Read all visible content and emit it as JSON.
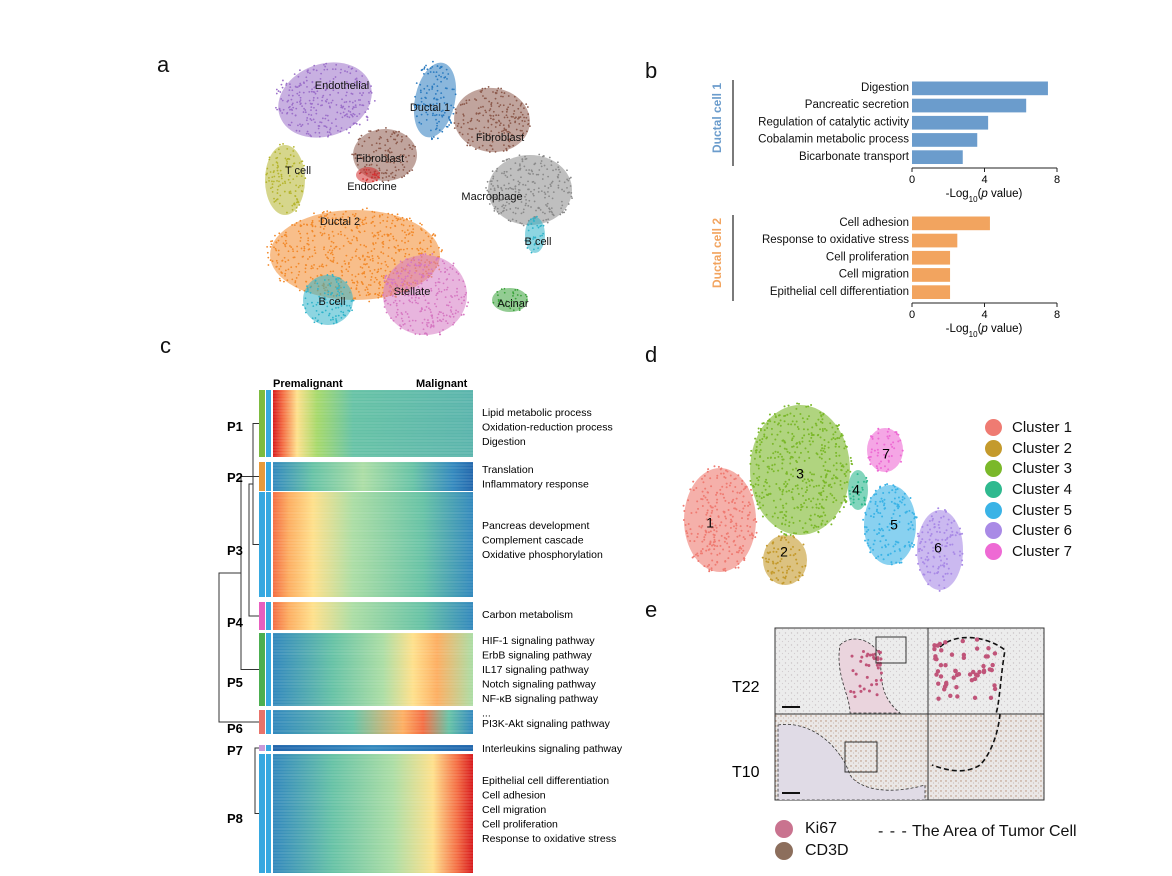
{
  "panel_labels": {
    "a": "a",
    "b": "b",
    "c": "c",
    "d": "d",
    "e": "e"
  },
  "panel_a": {
    "cell_types": [
      {
        "label": "Endothelial",
        "color": "#9b6fc9"
      },
      {
        "label": "Ductal 1",
        "color": "#2b7bbf"
      },
      {
        "label": "Fibroblast",
        "color": "#8c5a4c"
      },
      {
        "label": "T cell",
        "color": "#b5b52e"
      },
      {
        "label": "Fibroblast",
        "color": "#8c5a4c"
      },
      {
        "label": "Endocrine",
        "color": "#d22f2f"
      },
      {
        "label": "Macrophage",
        "color": "#8a8a8a"
      },
      {
        "label": "Ductal 2",
        "color": "#f2892a"
      },
      {
        "label": "B cell",
        "color": "#2fb3c9"
      },
      {
        "label": "B cell",
        "color": "#2fb3c9"
      },
      {
        "label": "Stellate",
        "color": "#d678c2"
      },
      {
        "label": "Acinar",
        "color": "#3aa23a"
      }
    ]
  },
  "chart_data": [
    {
      "type": "bar",
      "group": "Ductal cell 1",
      "color": "#6b9ccc",
      "categories": [
        "Digestion",
        "Pancreatic secretion",
        "Regulation of catalytic activity",
        "Cobalamin metabolic process",
        "Bicarbonate transport"
      ],
      "values": [
        7.5,
        6.3,
        4.2,
        3.6,
        2.8
      ],
      "xlabel_prefix": "-Log",
      "xlabel_sub": "10",
      "xlabel_mid": "(",
      "xlabel_italic": "p",
      "xlabel_suffix": " value)",
      "xlim": [
        0,
        8
      ],
      "ticks": [
        "0",
        "4",
        "8"
      ]
    },
    {
      "type": "bar",
      "group": "Ductal cell 2",
      "color": "#f2a45f",
      "categories": [
        "Cell adhesion",
        "Response to oxidative stress",
        "Cell proliferation",
        "Cell migration",
        "Epithelial cell differentiation"
      ],
      "values": [
        4.3,
        2.5,
        2.1,
        2.1,
        2.1
      ],
      "xlabel_prefix": "-Log",
      "xlabel_sub": "10",
      "xlabel_mid": "(",
      "xlabel_italic": "p",
      "xlabel_suffix": " value)",
      "xlim": [
        0,
        8
      ],
      "ticks": [
        "0",
        "4",
        "8"
      ]
    }
  ],
  "panel_c": {
    "header_left": "Premalignant",
    "header_right": "Malignant",
    "clusters": [
      {
        "label": "P1",
        "color": "#7dbb3f",
        "pattern": "early",
        "terms": [
          "Lipid metabolic process",
          "Oxidation-reduction process",
          "Digestion"
        ]
      },
      {
        "label": "P2",
        "color": "#e89a3a",
        "pattern": "mid-late-low",
        "terms": [
          "Translation",
          "Inflammatory response"
        ]
      },
      {
        "label": "P3",
        "color": "#36a8e0",
        "pattern": "early-mid",
        "terms": [
          "Pancreas development",
          "Complement cascade",
          "Oxidative phosphorylation"
        ]
      },
      {
        "label": "P4",
        "color": "#e85fbf",
        "pattern": "early-mid",
        "terms": [
          "Carbon metabolism"
        ]
      },
      {
        "label": "P5",
        "color": "#4caf50",
        "pattern": "mid-late",
        "terms": [
          "HIF-1 signaling pathway",
          "ErbB signaling pathway",
          "IL17 signaling pathway",
          "Notch signaling pathway",
          "NF-κB signaling pathway",
          "..."
        ]
      },
      {
        "label": "P6",
        "color": "#e8736a",
        "pattern": "mid",
        "terms": [
          "PI3K-Akt signaling pathway"
        ]
      },
      {
        "label": "P7",
        "color": "#c89ad8",
        "pattern": "low",
        "terms": [
          "Interleukins signaling pathway"
        ]
      },
      {
        "label": "P8",
        "color": "#36a8e0",
        "pattern": "late",
        "terms": [
          "Epithelial cell differentiation",
          "Cell adhesion",
          "Cell migration",
          "Cell proliferation",
          "Response to oxidative stress"
        ]
      }
    ]
  },
  "panel_d": {
    "clusters": [
      {
        "num": "1",
        "label": "Cluster 1",
        "color": "#ef7b72"
      },
      {
        "num": "2",
        "label": "Cluster 2",
        "color": "#c49a2c"
      },
      {
        "num": "3",
        "label": "Cluster 3",
        "color": "#7bb82a"
      },
      {
        "num": "4",
        "label": "Cluster 4",
        "color": "#2fb98f"
      },
      {
        "num": "5",
        "label": "Cluster 5",
        "color": "#3ab3e6"
      },
      {
        "num": "6",
        "label": "Cluster 6",
        "color": "#a98ae6"
      },
      {
        "num": "7",
        "label": "Cluster 7",
        "color": "#ee6ad4"
      }
    ]
  },
  "panel_e": {
    "rows": [
      {
        "label": "T22"
      },
      {
        "label": "T10"
      }
    ],
    "legend": [
      {
        "label": "Ki67",
        "color": "#c9738f"
      },
      {
        "label": "CD3D",
        "color": "#8c6e5c"
      }
    ],
    "dashed_legend": "The Area of Tumor Cell"
  }
}
